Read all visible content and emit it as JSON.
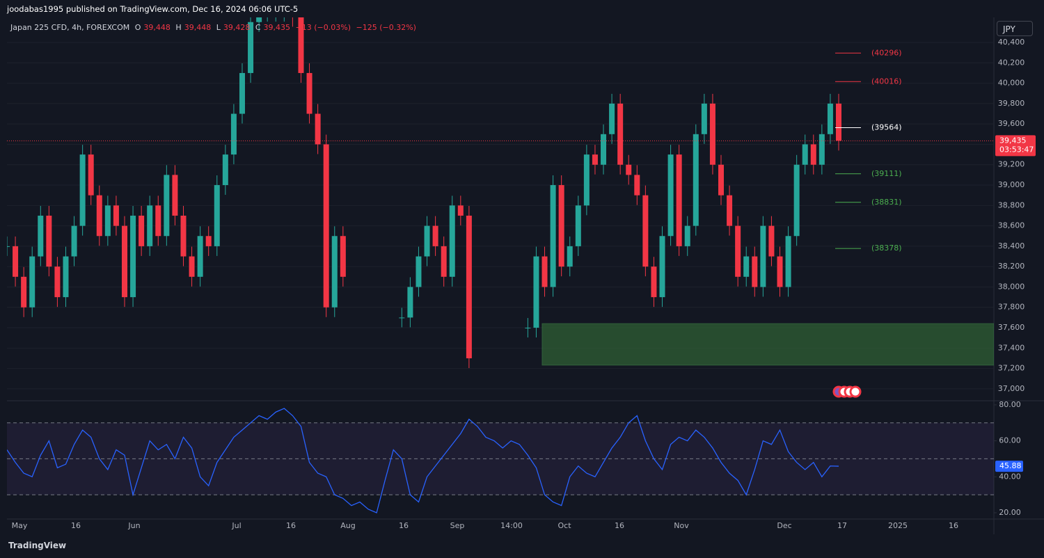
{
  "header": "joodabas1995 published on TradingView.com, Dec 16, 2024 06:06 UTC-5",
  "legend": {
    "symbol": "Japan 225 CFD, 4h, FOREXCOM",
    "o_label": "O",
    "open": "39,448",
    "h_label": "H",
    "high": "39,448",
    "l_label": "L",
    "low": "39,428",
    "c_label": "C",
    "close": "39,435",
    "change": "−13 (−0.03%)",
    "change2": "−125 (−0.32%)"
  },
  "currency": "JPY",
  "footer": "TradingView",
  "time_labels": [
    "May",
    "16",
    "Jun",
    "Jul",
    "16",
    "Aug",
    "16",
    "Sep",
    "14:00",
    "Oct",
    "16",
    "Nov",
    "Dec",
    "17",
    "2025",
    "16"
  ],
  "chart_data": [
    {
      "type": "candlestick",
      "title": "Japan 225 CFD",
      "values": [
        38400,
        38100,
        37800,
        38300,
        38700,
        38200,
        37900,
        38300,
        38600,
        39300,
        38900,
        38500,
        38800,
        38600,
        37900,
        38700,
        38400,
        38800,
        38500,
        39100,
        38700,
        38300,
        38100,
        38500,
        38400,
        39000,
        39300,
        39700,
        40100,
        40600,
        40700,
        40700,
        40700,
        40700,
        40650,
        40100,
        39700,
        39400,
        37800,
        38500,
        38100,
        null,
        null,
        null,
        null,
        null,
        null,
        37700,
        38000,
        38300,
        38600,
        38400,
        38100,
        38800,
        38700,
        37300,
        null,
        null,
        null,
        null,
        null,
        null,
        37600,
        38300,
        38000,
        39000,
        38200,
        38400,
        38800,
        39300,
        39200,
        39500,
        39800,
        39200,
        39100,
        38900,
        38200,
        37900,
        38500,
        39300,
        38400,
        38600,
        39500,
        39800,
        39200,
        38900,
        38600,
        38100,
        38300,
        38000,
        38600,
        38300,
        38000,
        38500,
        39200,
        39400,
        39200,
        39500,
        39800,
        39435
      ],
      "up_color": "#26a69a",
      "down_color": "#f23645",
      "ylim": [
        36890,
        40646
      ],
      "yticks": [
        {
          "value": 40400,
          "label": "40,400"
        },
        {
          "value": 40200,
          "label": "40,200"
        },
        {
          "value": 40000,
          "label": "40,000"
        },
        {
          "value": 39800,
          "label": "39,800"
        },
        {
          "value": 39600,
          "label": "39,600"
        },
        {
          "value": 39400,
          "label": "39,400"
        },
        {
          "value": 39200,
          "label": "39,200"
        },
        {
          "value": 39000,
          "label": "39,000"
        },
        {
          "value": 38800,
          "label": "38,800"
        },
        {
          "value": 38600,
          "label": "38,600"
        },
        {
          "value": 38400,
          "label": "38,400"
        },
        {
          "value": 38200,
          "label": "38,200"
        },
        {
          "value": 38000,
          "label": "38,000"
        },
        {
          "value": 37800,
          "label": "37,800"
        },
        {
          "value": 37600,
          "label": "37,600"
        },
        {
          "value": 37400,
          "label": "37,400"
        },
        {
          "value": 37200,
          "label": "37,200"
        },
        {
          "value": 37000,
          "label": "37,000"
        }
      ],
      "grid": true,
      "levels": [
        {
          "value": 40296,
          "label": "(40296)",
          "color": "#f23645"
        },
        {
          "value": 40016,
          "label": "(40016)",
          "color": "#f23645"
        },
        {
          "value": 39564,
          "label": "(39564)",
          "color": "#ffffff"
        },
        {
          "value": 39111,
          "label": "(39111)",
          "color": "#4caf50"
        },
        {
          "value": 38831,
          "label": "(38831)",
          "color": "#4caf50"
        },
        {
          "value": 38378,
          "label": "(38378)",
          "color": "#4caf50"
        }
      ],
      "zone": [
        37640,
        37233
      ],
      "zone_color": "#2e5e34",
      "last_price": {
        "value": 39435,
        "label": "39,435"
      },
      "countdown": "03:53:47",
      "last_color": "#f23645"
    },
    {
      "type": "line",
      "title": "RSI",
      "values": [
        55,
        48,
        42,
        40,
        52,
        60,
        45,
        47,
        58,
        66,
        62,
        50,
        44,
        55,
        52,
        30,
        45,
        60,
        55,
        58,
        50,
        62,
        56,
        40,
        35,
        48,
        55,
        62,
        66,
        70,
        74,
        72,
        76,
        78,
        74,
        68,
        48,
        42,
        40,
        30,
        28,
        24,
        26,
        22,
        20,
        38,
        55,
        50,
        30,
        26,
        40,
        46,
        52,
        58,
        64,
        72,
        68,
        62,
        60,
        56,
        60,
        58,
        52,
        45,
        30,
        26,
        24,
        40,
        46,
        42,
        40,
        48,
        56,
        62,
        70,
        74,
        60,
        50,
        44,
        58,
        62,
        60,
        66,
        62,
        56,
        48,
        42,
        38,
        30,
        44,
        60,
        58,
        66,
        54,
        48,
        44,
        48,
        40,
        46,
        45.88
      ],
      "color": "#2962ff",
      "ylim": [
        16.9,
        81.5
      ],
      "yticks": [
        {
          "value": 80,
          "label": "80.00"
        },
        {
          "value": 60,
          "label": "60.00"
        },
        {
          "value": 40,
          "label": "40.00"
        },
        {
          "value": 20,
          "label": "20.00"
        }
      ],
      "bands": [
        70,
        50,
        30
      ],
      "band_fill": "#7e57c2",
      "last": 45.88
    }
  ]
}
